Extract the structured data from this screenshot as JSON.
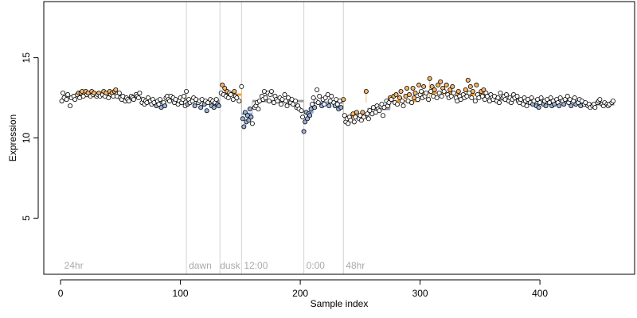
{
  "chart_data": {
    "type": "scatter",
    "xlabel": "Sample index",
    "ylabel": "Expression",
    "xlim": [
      -14,
      479
    ],
    "ylim": [
      1.5,
      18.5
    ],
    "x_ticks": [
      0,
      100,
      200,
      300,
      400
    ],
    "y_ticks": [
      5,
      10,
      15
    ],
    "grid": false,
    "legend": "none",
    "colors": {
      "point_stroke": "#000000",
      "high": "#f5b56b",
      "low": "#9ab2d9",
      "neutral": "#ffffff",
      "segment_high": "#f0a040",
      "segment_low": "#8fa8d4",
      "boundary_line": "#d3d3d3",
      "annotation_text": "#aaaaaa"
    },
    "boundaries": [
      105,
      133,
      151,
      203,
      236
    ],
    "annotations": [
      {
        "x": 3,
        "label": "24hr"
      },
      {
        "x": 107,
        "label": "dawn"
      },
      {
        "x": 133,
        "label": "dusk"
      },
      {
        "x": 153,
        "label": "12:00"
      },
      {
        "x": 205,
        "label": "0:00"
      },
      {
        "x": 238,
        "label": "48hr"
      }
    ],
    "segments": [
      {
        "x0": 1,
        "x1": 13,
        "y": 12.5,
        "level": "neutral"
      },
      {
        "x0": 13,
        "x1": 48,
        "y": 12.6,
        "level": "high"
      },
      {
        "x0": 48,
        "x1": 68,
        "y": 12.5,
        "level": "neutral"
      },
      {
        "x0": 68,
        "x1": 88,
        "y": 12.2,
        "level": "low"
      },
      {
        "x0": 88,
        "x1": 105,
        "y": 12.4,
        "level": "neutral"
      },
      {
        "x0": 105,
        "x1": 133,
        "y": 12.3,
        "level": "low"
      },
      {
        "x0": 133,
        "x1": 151,
        "y": 12.7,
        "level": "high"
      },
      {
        "x0": 151,
        "x1": 160,
        "y": 11.5,
        "level": "low"
      },
      {
        "x0": 160,
        "x1": 203,
        "y": 12.3,
        "level": "neutral"
      },
      {
        "x0": 203,
        "x1": 211,
        "y": 11.6,
        "level": "low"
      },
      {
        "x0": 211,
        "x1": 236,
        "y": 12.2,
        "level": "low"
      },
      {
        "x0": 236,
        "x1": 256,
        "y": 11.3,
        "level": "high"
      },
      {
        "x0": 256,
        "x1": 275,
        "y": 11.8,
        "level": "neutral"
      },
      {
        "x0": 275,
        "x1": 300,
        "y": 12.3,
        "level": "high"
      },
      {
        "x0": 300,
        "x1": 330,
        "y": 12.8,
        "level": "high"
      },
      {
        "x0": 330,
        "x1": 360,
        "y": 12.7,
        "level": "high"
      },
      {
        "x0": 360,
        "x1": 390,
        "y": 12.4,
        "level": "neutral"
      },
      {
        "x0": 390,
        "x1": 437,
        "y": 12.3,
        "level": "low"
      },
      {
        "x0": 437,
        "x1": 462,
        "y": 12.1,
        "level": "neutral"
      }
    ],
    "stems": [
      {
        "x": 105,
        "y": 12.9
      },
      {
        "x": 151,
        "y": 13.2
      },
      {
        "x": 236,
        "y": 12.4
      },
      {
        "x": 255,
        "y": 12.9
      },
      {
        "x": 308,
        "y": 13.7
      }
    ],
    "points": [
      [
        1,
        12.3
      ],
      [
        2,
        12.8
      ],
      [
        3,
        12.5
      ],
      [
        5,
        12.4
      ],
      [
        6,
        12.7
      ],
      [
        8,
        12.0
      ],
      [
        9,
        12.5
      ],
      [
        11,
        12.6
      ],
      [
        12,
        12.4
      ],
      [
        14,
        12.7
      ],
      [
        15,
        12.8
      ],
      [
        16,
        12.5
      ],
      [
        17,
        12.8
      ],
      [
        18,
        12.9
      ],
      [
        19,
        12.6
      ],
      [
        21,
        12.9
      ],
      [
        22,
        12.7
      ],
      [
        23,
        12.8
      ],
      [
        25,
        12.6
      ],
      [
        26,
        12.9
      ],
      [
        27,
        12.7
      ],
      [
        28,
        12.8
      ],
      [
        30,
        12.6
      ],
      [
        31,
        12.7
      ],
      [
        32,
        12.8
      ],
      [
        33,
        12.6
      ],
      [
        35,
        12.7
      ],
      [
        36,
        12.9
      ],
      [
        37,
        12.6
      ],
      [
        38,
        12.8
      ],
      [
        40,
        12.5
      ],
      [
        41,
        12.9
      ],
      [
        42,
        12.7
      ],
      [
        43,
        12.8
      ],
      [
        44,
        12.6
      ],
      [
        45,
        12.9
      ],
      [
        46,
        13.0
      ],
      [
        47,
        12.6
      ],
      [
        49,
        12.8
      ],
      [
        50,
        12.5
      ],
      [
        51,
        12.4
      ],
      [
        52,
        12.6
      ],
      [
        54,
        12.3
      ],
      [
        55,
        12.5
      ],
      [
        56,
        12.4
      ],
      [
        57,
        12.3
      ],
      [
        59,
        12.6
      ],
      [
        60,
        12.5
      ],
      [
        61,
        12.4
      ],
      [
        63,
        12.7
      ],
      [
        64,
        12.6
      ],
      [
        65,
        12.5
      ],
      [
        66,
        12.8
      ],
      [
        68,
        12.2
      ],
      [
        69,
        12.4
      ],
      [
        70,
        12.1
      ],
      [
        71,
        12.3
      ],
      [
        72,
        12.2
      ],
      [
        73,
        12.5
      ],
      [
        75,
        12.3
      ],
      [
        76,
        12.1
      ],
      [
        77,
        12.4
      ],
      [
        78,
        12.2
      ],
      [
        80,
        12.0
      ],
      [
        81,
        12.3
      ],
      [
        82,
        12.1
      ],
      [
        83,
        12.4
      ],
      [
        84,
        11.9
      ],
      [
        86,
        12.2
      ],
      [
        87,
        12.0
      ],
      [
        88,
        12.5
      ],
      [
        89,
        12.6
      ],
      [
        90,
        12.4
      ],
      [
        91,
        12.3
      ],
      [
        92,
        12.6
      ],
      [
        94,
        12.5
      ],
      [
        95,
        12.2
      ],
      [
        96,
        12.4
      ],
      [
        98,
        12.1
      ],
      [
        99,
        12.3
      ],
      [
        100,
        12.5
      ],
      [
        101,
        12.2
      ],
      [
        102,
        12.4
      ],
      [
        103,
        12.6
      ],
      [
        104,
        12.0
      ],
      [
        105,
        12.9
      ],
      [
        106,
        12.1
      ],
      [
        107,
        12.4
      ],
      [
        108,
        12.2
      ],
      [
        110,
        12.3
      ],
      [
        111,
        12.5
      ],
      [
        112,
        12.0
      ],
      [
        113,
        12.4
      ],
      [
        115,
        12.2
      ],
      [
        116,
        12.3
      ],
      [
        117,
        11.9
      ],
      [
        118,
        12.4
      ],
      [
        120,
        12.1
      ],
      [
        121,
        12.3
      ],
      [
        122,
        11.7
      ],
      [
        123,
        12.2
      ],
      [
        125,
        12.4
      ],
      [
        126,
        12.0
      ],
      [
        127,
        12.3
      ],
      [
        128,
        11.9
      ],
      [
        129,
        12.2
      ],
      [
        130,
        12.4
      ],
      [
        131,
        12.1
      ],
      [
        132,
        12.0
      ],
      [
        134,
        12.8
      ],
      [
        135,
        13.3
      ],
      [
        136,
        12.7
      ],
      [
        137,
        13.1
      ],
      [
        138,
        12.6
      ],
      [
        139,
        12.9
      ],
      [
        140,
        12.5
      ],
      [
        141,
        12.8
      ],
      [
        142,
        12.7
      ],
      [
        144,
        12.4
      ],
      [
        145,
        12.9
      ],
      [
        146,
        12.6
      ],
      [
        147,
        12.5
      ],
      [
        149,
        12.3
      ],
      [
        151,
        13.2
      ],
      [
        152,
        11.2
      ],
      [
        153,
        10.7
      ],
      [
        154,
        11.6
      ],
      [
        155,
        11.0
      ],
      [
        156,
        11.4
      ],
      [
        157,
        11.1
      ],
      [
        158,
        11.8
      ],
      [
        159,
        11.3
      ],
      [
        160,
        10.9
      ],
      [
        162,
        11.9
      ],
      [
        163,
        12.0
      ],
      [
        164,
        12.2
      ],
      [
        165,
        11.8
      ],
      [
        166,
        12.3
      ],
      [
        168,
        12.6
      ],
      [
        169,
        12.4
      ],
      [
        170,
        12.9
      ],
      [
        171,
        12.5
      ],
      [
        173,
        12.8
      ],
      [
        174,
        12.3
      ],
      [
        175,
        12.7
      ],
      [
        176,
        12.9
      ],
      [
        178,
        12.2
      ],
      [
        179,
        12.6
      ],
      [
        180,
        12.4
      ],
      [
        181,
        12.3
      ],
      [
        183,
        12.5
      ],
      [
        184,
        12.1
      ],
      [
        185,
        12.4
      ],
      [
        187,
        12.7
      ],
      [
        188,
        12.3
      ],
      [
        189,
        12.0
      ],
      [
        190,
        12.5
      ],
      [
        192,
        12.2
      ],
      [
        193,
        12.4
      ],
      [
        194,
        12.1
      ],
      [
        196,
        12.3
      ],
      [
        197,
        11.9
      ],
      [
        198,
        12.0
      ],
      [
        199,
        11.8
      ],
      [
        201,
        11.7
      ],
      [
        202,
        11.3
      ],
      [
        203,
        10.4
      ],
      [
        204,
        11.0
      ],
      [
        205,
        11.6
      ],
      [
        206,
        11.2
      ],
      [
        207,
        11.5
      ],
      [
        208,
        11.4
      ],
      [
        209,
        11.8
      ],
      [
        210,
        12.1
      ],
      [
        211,
        12.5
      ],
      [
        212,
        11.9
      ],
      [
        213,
        12.3
      ],
      [
        214,
        13.0
      ],
      [
        215,
        12.2
      ],
      [
        216,
        12.6
      ],
      [
        218,
        12.0
      ],
      [
        219,
        12.4
      ],
      [
        220,
        12.1
      ],
      [
        221,
        12.5
      ],
      [
        223,
        12.7
      ],
      [
        224,
        12.0
      ],
      [
        225,
        12.3
      ],
      [
        226,
        12.6
      ],
      [
        228,
        12.2
      ],
      [
        229,
        12.0
      ],
      [
        230,
        12.4
      ],
      [
        231,
        12.1
      ],
      [
        232,
        11.8
      ],
      [
        233,
        12.3
      ],
      [
        234,
        11.9
      ],
      [
        236,
        12.4
      ],
      [
        237,
        11.4
      ],
      [
        238,
        11.0
      ],
      [
        239,
        11.2
      ],
      [
        240,
        10.9
      ],
      [
        241,
        11.3
      ],
      [
        242,
        11.1
      ],
      [
        244,
        11.5
      ],
      [
        245,
        11.0
      ],
      [
        246,
        11.3
      ],
      [
        247,
        11.6
      ],
      [
        249,
        11.2
      ],
      [
        250,
        11.4
      ],
      [
        251,
        11.1
      ],
      [
        252,
        11.6
      ],
      [
        253,
        11.3
      ],
      [
        255,
        12.9
      ],
      [
        256,
        11.5
      ],
      [
        257,
        11.2
      ],
      [
        258,
        11.7
      ],
      [
        260,
        11.5
      ],
      [
        261,
        11.9
      ],
      [
        263,
        11.6
      ],
      [
        264,
        12.0
      ],
      [
        265,
        11.8
      ],
      [
        266,
        11.7
      ],
      [
        268,
        12.1
      ],
      [
        269,
        11.4
      ],
      [
        270,
        11.9
      ],
      [
        272,
        12.3
      ],
      [
        273,
        12.0
      ],
      [
        274,
        12.2
      ],
      [
        275,
        12.5
      ],
      [
        276,
        12.4
      ],
      [
        278,
        12.6
      ],
      [
        279,
        12.2
      ],
      [
        280,
        12.7
      ],
      [
        281,
        12.1
      ],
      [
        283,
        12.5
      ],
      [
        284,
        12.9
      ],
      [
        285,
        12.3
      ],
      [
        286,
        12.0
      ],
      [
        288,
        12.6
      ],
      [
        289,
        13.1
      ],
      [
        290,
        12.3
      ],
      [
        291,
        12.7
      ],
      [
        293,
        12.2
      ],
      [
        294,
        13.1
      ],
      [
        295,
        12.5
      ],
      [
        296,
        12.8
      ],
      [
        298,
        12.4
      ],
      [
        299,
        13.3
      ],
      [
        300,
        12.7
      ],
      [
        301,
        12.9
      ],
      [
        302,
        12.5
      ],
      [
        303,
        13.2
      ],
      [
        304,
        12.6
      ],
      [
        305,
        12.8
      ],
      [
        307,
        12.4
      ],
      [
        308,
        13.7
      ],
      [
        309,
        12.9
      ],
      [
        310,
        13.2
      ],
      [
        311,
        12.6
      ],
      [
        312,
        13.0
      ],
      [
        314,
        12.5
      ],
      [
        315,
        13.3
      ],
      [
        316,
        12.8
      ],
      [
        317,
        13.5
      ],
      [
        318,
        12.6
      ],
      [
        319,
        13.1
      ],
      [
        320,
        12.9
      ],
      [
        322,
        13.3
      ],
      [
        323,
        12.7
      ],
      [
        324,
        12.5
      ],
      [
        325,
        13.0
      ],
      [
        326,
        12.6
      ],
      [
        327,
        13.2
      ],
      [
        328,
        12.8
      ],
      [
        330,
        12.5
      ],
      [
        331,
        12.3
      ],
      [
        332,
        12.9
      ],
      [
        333,
        12.6
      ],
      [
        334,
        12.4
      ],
      [
        336,
        12.7
      ],
      [
        337,
        12.5
      ],
      [
        338,
        13.0
      ],
      [
        339,
        12.6
      ],
      [
        340,
        13.6
      ],
      [
        341,
        12.8
      ],
      [
        342,
        13.2
      ],
      [
        343,
        12.5
      ],
      [
        344,
        12.9
      ],
      [
        346,
        12.3
      ],
      [
        347,
        13.3
      ],
      [
        348,
        12.7
      ],
      [
        349,
        12.5
      ],
      [
        351,
        12.9
      ],
      [
        352,
        12.6
      ],
      [
        353,
        13.0
      ],
      [
        354,
        12.4
      ],
      [
        355,
        12.8
      ],
      [
        356,
        12.6
      ],
      [
        358,
        12.3
      ],
      [
        359,
        12.7
      ],
      [
        360,
        12.5
      ],
      [
        361,
        12.4
      ],
      [
        362,
        12.6
      ],
      [
        364,
        12.3
      ],
      [
        365,
        12.5
      ],
      [
        366,
        12.2
      ],
      [
        367,
        12.8
      ],
      [
        369,
        12.5
      ],
      [
        370,
        12.6
      ],
      [
        371,
        12.4
      ],
      [
        372,
        12.7
      ],
      [
        374,
        12.3
      ],
      [
        375,
        12.5
      ],
      [
        376,
        12.2
      ],
      [
        377,
        12.4
      ],
      [
        378,
        12.7
      ],
      [
        379,
        12.5
      ],
      [
        381,
        12.6
      ],
      [
        382,
        12.3
      ],
      [
        383,
        12.2
      ],
      [
        384,
        12.4
      ],
      [
        386,
        12.1
      ],
      [
        387,
        12.5
      ],
      [
        388,
        12.3
      ],
      [
        389,
        12.0
      ],
      [
        390,
        12.4
      ],
      [
        392,
        12.2
      ],
      [
        393,
        12.5
      ],
      [
        394,
        12.1
      ],
      [
        395,
        12.3
      ],
      [
        397,
        12.0
      ],
      [
        398,
        12.4
      ],
      [
        399,
        11.9
      ],
      [
        400,
        12.2
      ],
      [
        401,
        12.5
      ],
      [
        403,
        12.1
      ],
      [
        404,
        12.3
      ],
      [
        405,
        12.0
      ],
      [
        406,
        12.4
      ],
      [
        408,
        12.2
      ],
      [
        409,
        12.5
      ],
      [
        410,
        12.0
      ],
      [
        411,
        12.3
      ],
      [
        412,
        12.1
      ],
      [
        414,
        12.4
      ],
      [
        415,
        12.2
      ],
      [
        416,
        12.0
      ],
      [
        417,
        12.5
      ],
      [
        419,
        12.3
      ],
      [
        420,
        12.1
      ],
      [
        421,
        12.4
      ],
      [
        423,
        12.6
      ],
      [
        424,
        12.2
      ],
      [
        425,
        12.4
      ],
      [
        426,
        12.0
      ],
      [
        428,
        12.3
      ],
      [
        429,
        12.5
      ],
      [
        430,
        12.1
      ],
      [
        432,
        12.2
      ],
      [
        433,
        12.4
      ],
      [
        434,
        12.0
      ],
      [
        435,
        12.3
      ],
      [
        437,
        12.1
      ],
      [
        438,
        12.2
      ],
      [
        440,
        12.0
      ],
      [
        441,
        12.1
      ],
      [
        442,
        11.9
      ],
      [
        444,
        12.0
      ],
      [
        445,
        12.1
      ],
      [
        446,
        11.9
      ],
      [
        448,
        12.2
      ],
      [
        449,
        12.3
      ],
      [
        450,
        12.4
      ],
      [
        452,
        12.1
      ],
      [
        453,
        12.0
      ],
      [
        454,
        12.2
      ],
      [
        456,
        12.1
      ],
      [
        457,
        12.0
      ],
      [
        458,
        12.1
      ],
      [
        460,
        12.2
      ],
      [
        461,
        12.3
      ]
    ]
  }
}
